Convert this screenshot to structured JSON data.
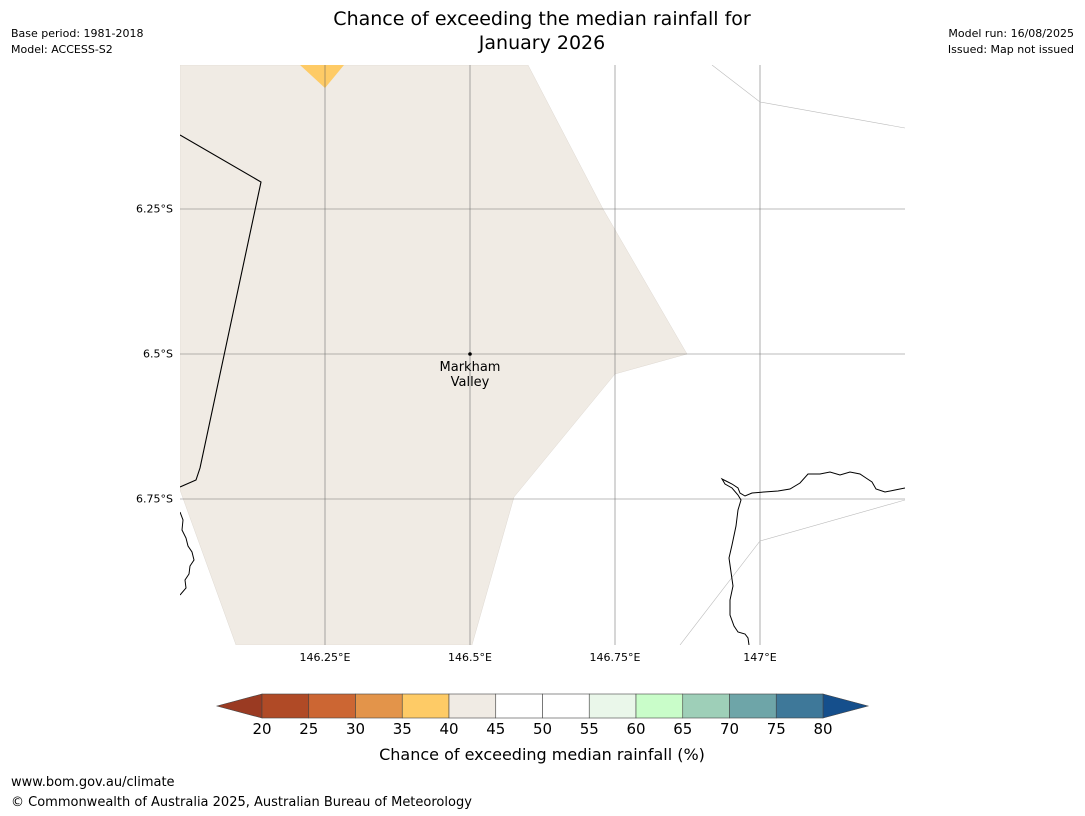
{
  "header": {
    "title_line1": "Chance of exceeding the median rainfall for",
    "title_line2": "January 2026",
    "base_period": "Base period: 1981-2018",
    "model": "Model: ACCESS-S2",
    "model_run": "Model run: 16/08/2025",
    "issued": "Issued: Map not issued"
  },
  "map": {
    "lat_labels": [
      "6.25°S",
      "6.5°S",
      "6.75°S"
    ],
    "lon_labels": [
      "146.25°E",
      "146.5°E",
      "146.75°E",
      "147°E"
    ],
    "place": {
      "name_line1": "Markham",
      "name_line2": "Valley",
      "lon": 146.5,
      "lat": -6.5
    },
    "colors": {
      "land_40_45": "#f0ebe4",
      "band_35_40": "#fecb66"
    }
  },
  "colorbar": {
    "title": "Chance of exceeding median rainfall (%)",
    "ticks": [
      "20",
      "25",
      "30",
      "35",
      "40",
      "45",
      "50",
      "55",
      "60",
      "65",
      "70",
      "75",
      "80"
    ],
    "colors": [
      "#b04a26",
      "#cc6633",
      "#e3944a",
      "#fecb66",
      "#f0ebe4",
      "#ffffff",
      "#ffffff",
      "#eaf7ea",
      "#c9fdc9",
      "#9ecfb8",
      "#6ea5a8",
      "#3e7899"
    ],
    "under_color": "#9a3a22",
    "over_color": "#154f8c"
  },
  "footer": {
    "url": "www.bom.gov.au/climate",
    "copyright": "© Commonwealth of Australia 2025, Australian Bureau of Meteorology"
  }
}
